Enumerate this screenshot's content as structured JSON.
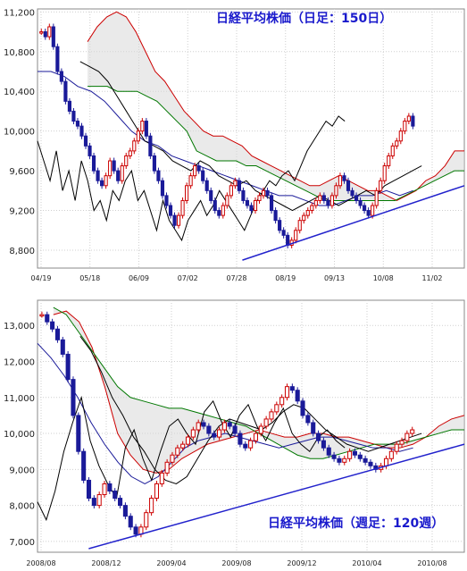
{
  "chart_data": [
    {
      "type": "line",
      "title": "日経平均株価（日足：150日）",
      "y_ticks": [
        8800,
        9200,
        9600,
        10000,
        10400,
        10800,
        11200
      ],
      "y_tick_labels": [
        "8,800",
        "9,200",
        "9,600",
        "10,000",
        "10,400",
        "10,800",
        "11,200"
      ],
      "ylim": [
        8620,
        11230
      ],
      "x_tick_labels": [
        "04/19",
        "05/18",
        "06/09",
        "07/02",
        "07/28",
        "08/19",
        "09/13",
        "10/08",
        "11/02"
      ],
      "grid": true,
      "series": [
        {
          "role": "price_candles",
          "color": "#1a1a99",
          "values": [
            11000,
            10950,
            11050,
            10850,
            10600,
            10500,
            10300,
            10200,
            10100,
            10050,
            9950,
            9850,
            9750,
            9600,
            9500,
            9450,
            9550,
            9700,
            9600,
            9500,
            9650,
            9750,
            9800,
            9900,
            10000,
            10100,
            9950,
            9750,
            9600,
            9500,
            9350,
            9250,
            9150,
            9050,
            9150,
            9300,
            9450,
            9550,
            9650,
            9600,
            9500,
            9400,
            9300,
            9200,
            9150,
            9250,
            9350,
            9450,
            9500,
            9400,
            9300,
            9250,
            9200,
            9300,
            9350,
            9400,
            9350,
            9200,
            9100,
            9000,
            8950,
            8850,
            8900,
            9000,
            9100,
            9150,
            9200,
            9250,
            9300,
            9350,
            9300,
            9250,
            9350,
            9450,
            9550,
            9500,
            9400,
            9350,
            9300,
            9250,
            9200,
            9150,
            9250,
            9400,
            9500,
            9650,
            9750,
            9850,
            9900,
            10000,
            10100,
            10150,
            10050
          ]
        },
        {
          "role": "lagging_span",
          "color": "#000000",
          "values": [
            9900,
            9700,
            9500,
            9800,
            9400,
            9600,
            9300,
            9700,
            9500,
            9200,
            9300,
            9100,
            9400,
            9300,
            9500,
            9600,
            9300,
            9400,
            9200,
            9000,
            9300,
            9100,
            9000,
            8900,
            9100,
            9200,
            9300,
            9150,
            9250,
            9400,
            9300,
            9200,
            9100,
            9000,
            9150,
            9300,
            9400,
            9500,
            9450,
            9550,
            9600,
            9500,
            9650,
            9800,
            9900,
            10000,
            10100,
            10050,
            10150,
            10100
          ]
        },
        {
          "role": "conversion_line",
          "color": "#000000",
          "values": [
            10700,
            10650,
            10600,
            10500,
            10350,
            10200,
            10050,
            9900,
            9850,
            9800,
            9700,
            9650,
            9600,
            9700,
            9650,
            9550,
            9500,
            9450,
            9500,
            9400,
            9350,
            9300,
            9250,
            9200,
            9250,
            9300,
            9350,
            9300,
            9250,
            9300,
            9350,
            9400,
            9350,
            9450,
            9500,
            9550,
            9600,
            9650
          ]
        },
        {
          "role": "base_line",
          "color": "#1a1a99",
          "values": [
            10600,
            10600,
            10550,
            10450,
            10400,
            10300,
            10150,
            10000,
            9900,
            9850,
            9750,
            9700,
            9650,
            9600,
            9550,
            9500,
            9450,
            9400,
            9350,
            9350,
            9300,
            9250,
            9250,
            9300,
            9350,
            9350,
            9400,
            9350,
            9400
          ]
        },
        {
          "role": "leading_span_a",
          "color": "#cc0000",
          "values": [
            10900,
            11050,
            11150,
            11200,
            11150,
            11000,
            10800,
            10600,
            10500,
            10350,
            10200,
            10100,
            10000,
            9950,
            9950,
            9900,
            9850,
            9750,
            9700,
            9650,
            9600,
            9550,
            9500,
            9450,
            9450,
            9500,
            9550,
            9500,
            9450,
            9400,
            9400,
            9350,
            9300,
            9350,
            9400,
            9500,
            9550,
            9650,
            9800,
            9800
          ]
        },
        {
          "role": "leading_span_b",
          "color": "#007700",
          "values": [
            10450,
            10450,
            10450,
            10400,
            10400,
            10400,
            10350,
            10300,
            10200,
            10100,
            10000,
            9800,
            9750,
            9700,
            9700,
            9700,
            9650,
            9650,
            9600,
            9550,
            9500,
            9450,
            9400,
            9350,
            9300,
            9300,
            9300,
            9300,
            9300,
            9300,
            9300,
            9300,
            9350,
            9400,
            9450,
            9500,
            9550,
            9600,
            9600
          ]
        }
      ],
      "trendline": {
        "color": "#2222cc",
        "from": [
          0.48,
          8700
        ],
        "to": [
          1.0,
          9450
        ]
      }
    },
    {
      "type": "line",
      "title": "日経平均株価（週足：120週）",
      "y_ticks": [
        7000,
        8000,
        9000,
        10000,
        11000,
        12000,
        13000
      ],
      "y_tick_labels": [
        "7,000",
        "8,000",
        "9,000",
        "10,000",
        "11,000",
        "12,000",
        "13,000"
      ],
      "ylim": [
        6700,
        13700
      ],
      "x_tick_labels": [
        "2008/08",
        "2008/12",
        "2009/04",
        "2009/08",
        "2009/12",
        "2010/04",
        "2010/08"
      ],
      "grid": true,
      "series": [
        {
          "role": "price_candles",
          "color": "#1a1a99",
          "values": [
            13300,
            13100,
            12900,
            12600,
            12200,
            11500,
            10500,
            9500,
            8700,
            8200,
            8000,
            8300,
            8600,
            8400,
            8200,
            8000,
            7700,
            7400,
            7200,
            7400,
            7800,
            8200,
            8600,
            8900,
            9200,
            9400,
            9600,
            9700,
            9900,
            10100,
            10300,
            10200,
            10000,
            9900,
            10100,
            10300,
            10200,
            10000,
            9700,
            9600,
            9800,
            10000,
            10200,
            10400,
            10600,
            10800,
            11000,
            11300,
            11200,
            10900,
            10500,
            10300,
            10000,
            9800,
            9600,
            9400,
            9300,
            9200,
            9300,
            9500,
            9400,
            9300,
            9200,
            9100,
            9000,
            9100,
            9300,
            9500,
            9700,
            9800,
            10000,
            10100
          ]
        },
        {
          "role": "lagging_span",
          "color": "#000000",
          "values": [
            8100,
            7600,
            8400,
            9500,
            10300,
            11000,
            9800,
            9100,
            8600,
            8200,
            9600,
            10100,
            9300,
            8700,
            9500,
            10200,
            10400,
            10000,
            9700,
            10600,
            10900,
            10300,
            9900,
            10500,
            10800,
            10200,
            9800,
            10300,
            10700,
            10000,
            9700,
            9500,
            9900,
            10100,
            9800,
            9600
          ]
        },
        {
          "role": "conversion_line",
          "color": "#000000",
          "values": [
            12700,
            12300,
            11700,
            11000,
            10500,
            9900,
            9500,
            9000,
            8700,
            8600,
            8800,
            9300,
            9800,
            10200,
            10400,
            10300,
            10200,
            10100,
            10300,
            10600,
            10800,
            10700,
            10400,
            10100,
            9900,
            9700,
            9600,
            9500,
            9600,
            9700,
            9800,
            9900,
            10000
          ]
        },
        {
          "role": "base_line",
          "color": "#1a1a99",
          "values": [
            12500,
            12100,
            11600,
            11000,
            10300,
            9700,
            9200,
            8800,
            8600,
            8800,
            9200,
            9600,
            9800,
            9900,
            10000,
            9900,
            9800,
            9700,
            9600,
            9700,
            9800,
            9900,
            9900,
            9800,
            9700,
            9600,
            9600,
            9500,
            9600
          ]
        },
        {
          "role": "leading_span_a",
          "color": "#cc0000",
          "values": [
            13300,
            13400,
            13100,
            12400,
            11300,
            10000,
            9400,
            9000,
            8900,
            9000,
            9300,
            9500,
            9700,
            9800,
            9900,
            10000,
            10100,
            10000,
            9900,
            9900,
            10000,
            10000,
            9900,
            9900,
            9800,
            9700,
            9600,
            9600,
            9700,
            9900,
            10200,
            10400,
            10500
          ]
        },
        {
          "role": "leading_span_b",
          "color": "#007700",
          "values": [
            13500,
            13300,
            12800,
            12300,
            11800,
            11300,
            11000,
            10900,
            10800,
            10700,
            10700,
            10600,
            10500,
            10400,
            10300,
            10200,
            10000,
            9800,
            9600,
            9400,
            9300,
            9300,
            9400,
            9500,
            9600,
            9700,
            9700,
            9700,
            9800,
            9900,
            10000,
            10100,
            10100
          ]
        }
      ],
      "trendline": {
        "color": "#2222cc",
        "from": [
          0.12,
          6800
        ],
        "to": [
          1.0,
          9700
        ]
      }
    }
  ]
}
